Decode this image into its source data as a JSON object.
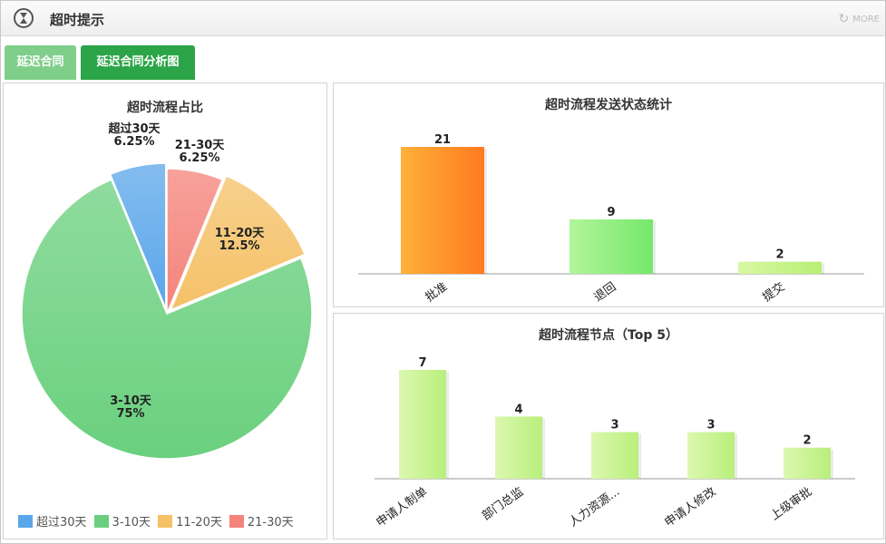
{
  "window": {
    "title": "超时提示",
    "more_label": "MORE"
  },
  "tabs": [
    {
      "label": "延迟合同"
    },
    {
      "label": "延迟合同分析图"
    }
  ],
  "colors": {
    "tab_inactive": "#7fcf8a",
    "tab_active": "#2ca548"
  },
  "chart_data": [
    {
      "type": "pie",
      "title": "超时流程占比",
      "slices": [
        {
          "label": "超过30天",
          "value": 6.25,
          "value_label": "6.25%",
          "color": "#5aa6ea"
        },
        {
          "label": "3-10天",
          "value": 75,
          "value_label": "75%",
          "color": "#6ad07e"
        },
        {
          "label": "11-20天",
          "value": 12.5,
          "value_label": "12.5%",
          "color": "#f5c167"
        },
        {
          "label": "21-30天",
          "value": 6.25,
          "value_label": "6.25%",
          "color": "#f4837a"
        }
      ],
      "legend": "bottom"
    },
    {
      "type": "bar",
      "title": "超时流程发送状态统计",
      "categories": [
        "批准",
        "退回",
        "提交"
      ],
      "values": [
        21,
        9,
        2
      ],
      "ylim": [
        0,
        21
      ]
    },
    {
      "type": "bar",
      "title": "超时流程节点（Top 5）",
      "categories": [
        "申请人制单",
        "部门总监",
        "人力资源...",
        "申请人修改",
        "上级审批"
      ],
      "values": [
        7,
        4,
        3,
        3,
        2
      ],
      "ylim": [
        0,
        7
      ]
    }
  ]
}
